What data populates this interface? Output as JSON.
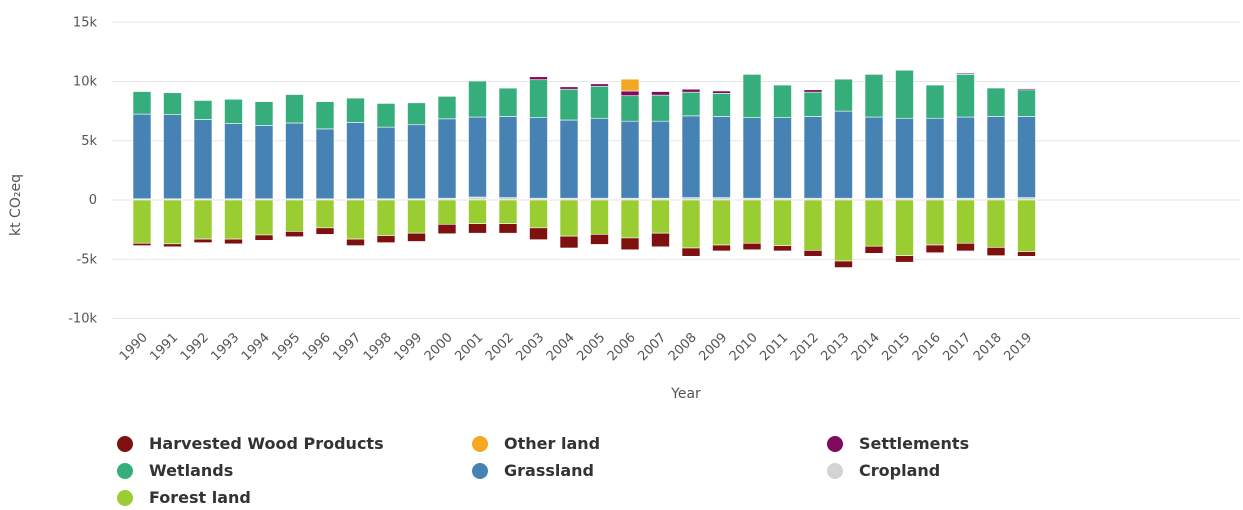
{
  "chart_data": {
    "type": "bar",
    "stacked": true,
    "xlabel": "Year",
    "ylabel": "kt CO₂eq",
    "ylim": [
      -10000,
      15000
    ],
    "yticks": [
      -10000,
      -5000,
      0,
      5000,
      10000,
      15000
    ],
    "ytick_labels": [
      "-10k",
      "-5k",
      "0",
      "5k",
      "10k",
      "15k"
    ],
    "grid": true,
    "legend_position": "bottom",
    "categories": [
      "1990",
      "1991",
      "1992",
      "1993",
      "1994",
      "1995",
      "1996",
      "1997",
      "1998",
      "1999",
      "2000",
      "2001",
      "2002",
      "2003",
      "2004",
      "2005",
      "2006",
      "2007",
      "2008",
      "2009",
      "2010",
      "2011",
      "2012",
      "2013",
      "2014",
      "2015",
      "2016",
      "2017",
      "2018",
      "2019"
    ],
    "series": [
      {
        "name": "Harvested Wood Products",
        "color": "#7f1010",
        "values": [
          -200,
          -250,
          -300,
          -400,
          -450,
          -450,
          -550,
          -550,
          -600,
          -700,
          -800,
          -800,
          -800,
          -1000,
          -1000,
          -850,
          -1000,
          -1150,
          -700,
          -500,
          -550,
          -450,
          -500,
          -550,
          -600,
          -550,
          -650,
          -650,
          -700,
          -400
        ]
      },
      {
        "name": "Other land",
        "color": "#f5a623",
        "values": [
          0,
          0,
          0,
          0,
          0,
          0,
          0,
          0,
          0,
          0,
          0,
          0,
          0,
          0,
          0,
          0,
          1000,
          0,
          0,
          0,
          0,
          0,
          0,
          0,
          0,
          0,
          0,
          0,
          0,
          0
        ]
      },
      {
        "name": "Settlements",
        "color": "#800a5e",
        "values": [
          0,
          0,
          0,
          0,
          0,
          0,
          0,
          0,
          0,
          0,
          0,
          50,
          50,
          250,
          200,
          200,
          400,
          300,
          250,
          200,
          0,
          0,
          200,
          0,
          0,
          0,
          0,
          100,
          0,
          100
        ]
      },
      {
        "name": "Wetlands",
        "color": "#36ae7c",
        "values": [
          1900,
          1850,
          1600,
          2050,
          2000,
          2400,
          2300,
          2050,
          2000,
          1850,
          1900,
          3050,
          2400,
          3200,
          2600,
          2700,
          2150,
          2200,
          2000,
          1950,
          3650,
          2750,
          2050,
          2700,
          3600,
          4050,
          2800,
          3600,
          2400,
          2250
        ]
      },
      {
        "name": "Grassland",
        "color": "#4682b4",
        "values": [
          7150,
          7100,
          6700,
          6350,
          6200,
          6400,
          5900,
          6450,
          6050,
          6250,
          6700,
          6750,
          6850,
          6800,
          6600,
          6750,
          6500,
          6500,
          6900,
          6850,
          6800,
          6800,
          6900,
          7350,
          6850,
          6750,
          6750,
          6850,
          6900,
          6850
        ]
      },
      {
        "name": "Cropland",
        "color": "#d3d3d3",
        "values": [
          100,
          100,
          100,
          100,
          100,
          100,
          100,
          100,
          100,
          100,
          150,
          250,
          200,
          150,
          150,
          150,
          150,
          150,
          200,
          200,
          150,
          150,
          150,
          150,
          150,
          150,
          150,
          150,
          150,
          200
        ]
      },
      {
        "name": "Forest land",
        "color": "#9acd32",
        "values": [
          -3650,
          -3700,
          -3300,
          -3300,
          -2950,
          -2650,
          -2350,
          -3300,
          -3000,
          -2800,
          -2050,
          -2000,
          -2000,
          -2350,
          -3050,
          -2900,
          -3200,
          -2800,
          -4050,
          -3800,
          -3650,
          -3850,
          -4250,
          -5150,
          -3900,
          -4700,
          -3800,
          -3650,
          -4000,
          -4350
        ]
      }
    ],
    "legend_rows": [
      [
        "Harvested Wood Products",
        "Other land",
        "Settlements"
      ],
      [
        "Wetlands",
        "Grassland",
        "Cropland"
      ],
      [
        "Forest land"
      ]
    ]
  }
}
